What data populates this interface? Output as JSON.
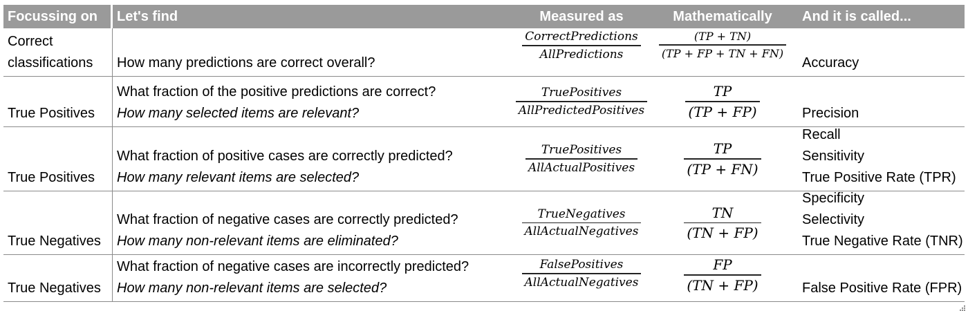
{
  "headers": [
    "Focussing on",
    "Let's find",
    "Measured as",
    "Mathematically",
    "And it is called..."
  ],
  "rows": [
    {
      "focus": [
        "Correct",
        "classifications"
      ],
      "find": [
        "How many predictions are correct overall?"
      ],
      "measured": {
        "num": "CorrectPredictions",
        "den": "AllPredictions"
      },
      "math": {
        "num": "(TP + TN)",
        "den": "(TP + FP + TN + FN)"
      },
      "names": [
        "Accuracy"
      ]
    },
    {
      "focus": [
        "True Positives"
      ],
      "find": [
        "What fraction of the positive predictions are correct?",
        "How many selected items are relevant?"
      ],
      "measured": {
        "num": "TruePositives",
        "den": "AllPredictedPositives"
      },
      "math": {
        "num": "TP",
        "den": "(TP + FP)"
      },
      "names": [
        "Precision"
      ]
    },
    {
      "focus": [
        "True Positives"
      ],
      "find": [
        "What fraction of positive cases are correctly predicted?",
        "How many relevant items are selected?"
      ],
      "measured": {
        "num": "TruePositives",
        "den": "AllActualPositives"
      },
      "math": {
        "num": "TP",
        "den": "(TP + FN)"
      },
      "names": [
        "Recall",
        "Sensitivity",
        "True Positive Rate (TPR)"
      ]
    },
    {
      "focus": [
        "True Negatives"
      ],
      "find": [
        "What fraction of negative cases are correctly predicted?",
        "How many non-relevant items are eliminated?"
      ],
      "measured": {
        "num": "TrueNegatives",
        "den": "AllActualNegatives"
      },
      "math": {
        "num": "TN",
        "den": "(TN + FP)"
      },
      "names": [
        "Specificity",
        "Selectivity",
        "True Negative Rate (TNR)"
      ]
    },
    {
      "focus": [
        "True Negatives"
      ],
      "find": [
        "What fraction of negative cases are incorrectly predicted?",
        "How many non-relevant items are selected?"
      ],
      "measured": {
        "num": "FalsePositives",
        "den": "AllActualNegatives"
      },
      "math": {
        "num": "FP",
        "den": "(TN + FP)"
      },
      "names": [
        "False Positive Rate (FPR)"
      ]
    }
  ]
}
